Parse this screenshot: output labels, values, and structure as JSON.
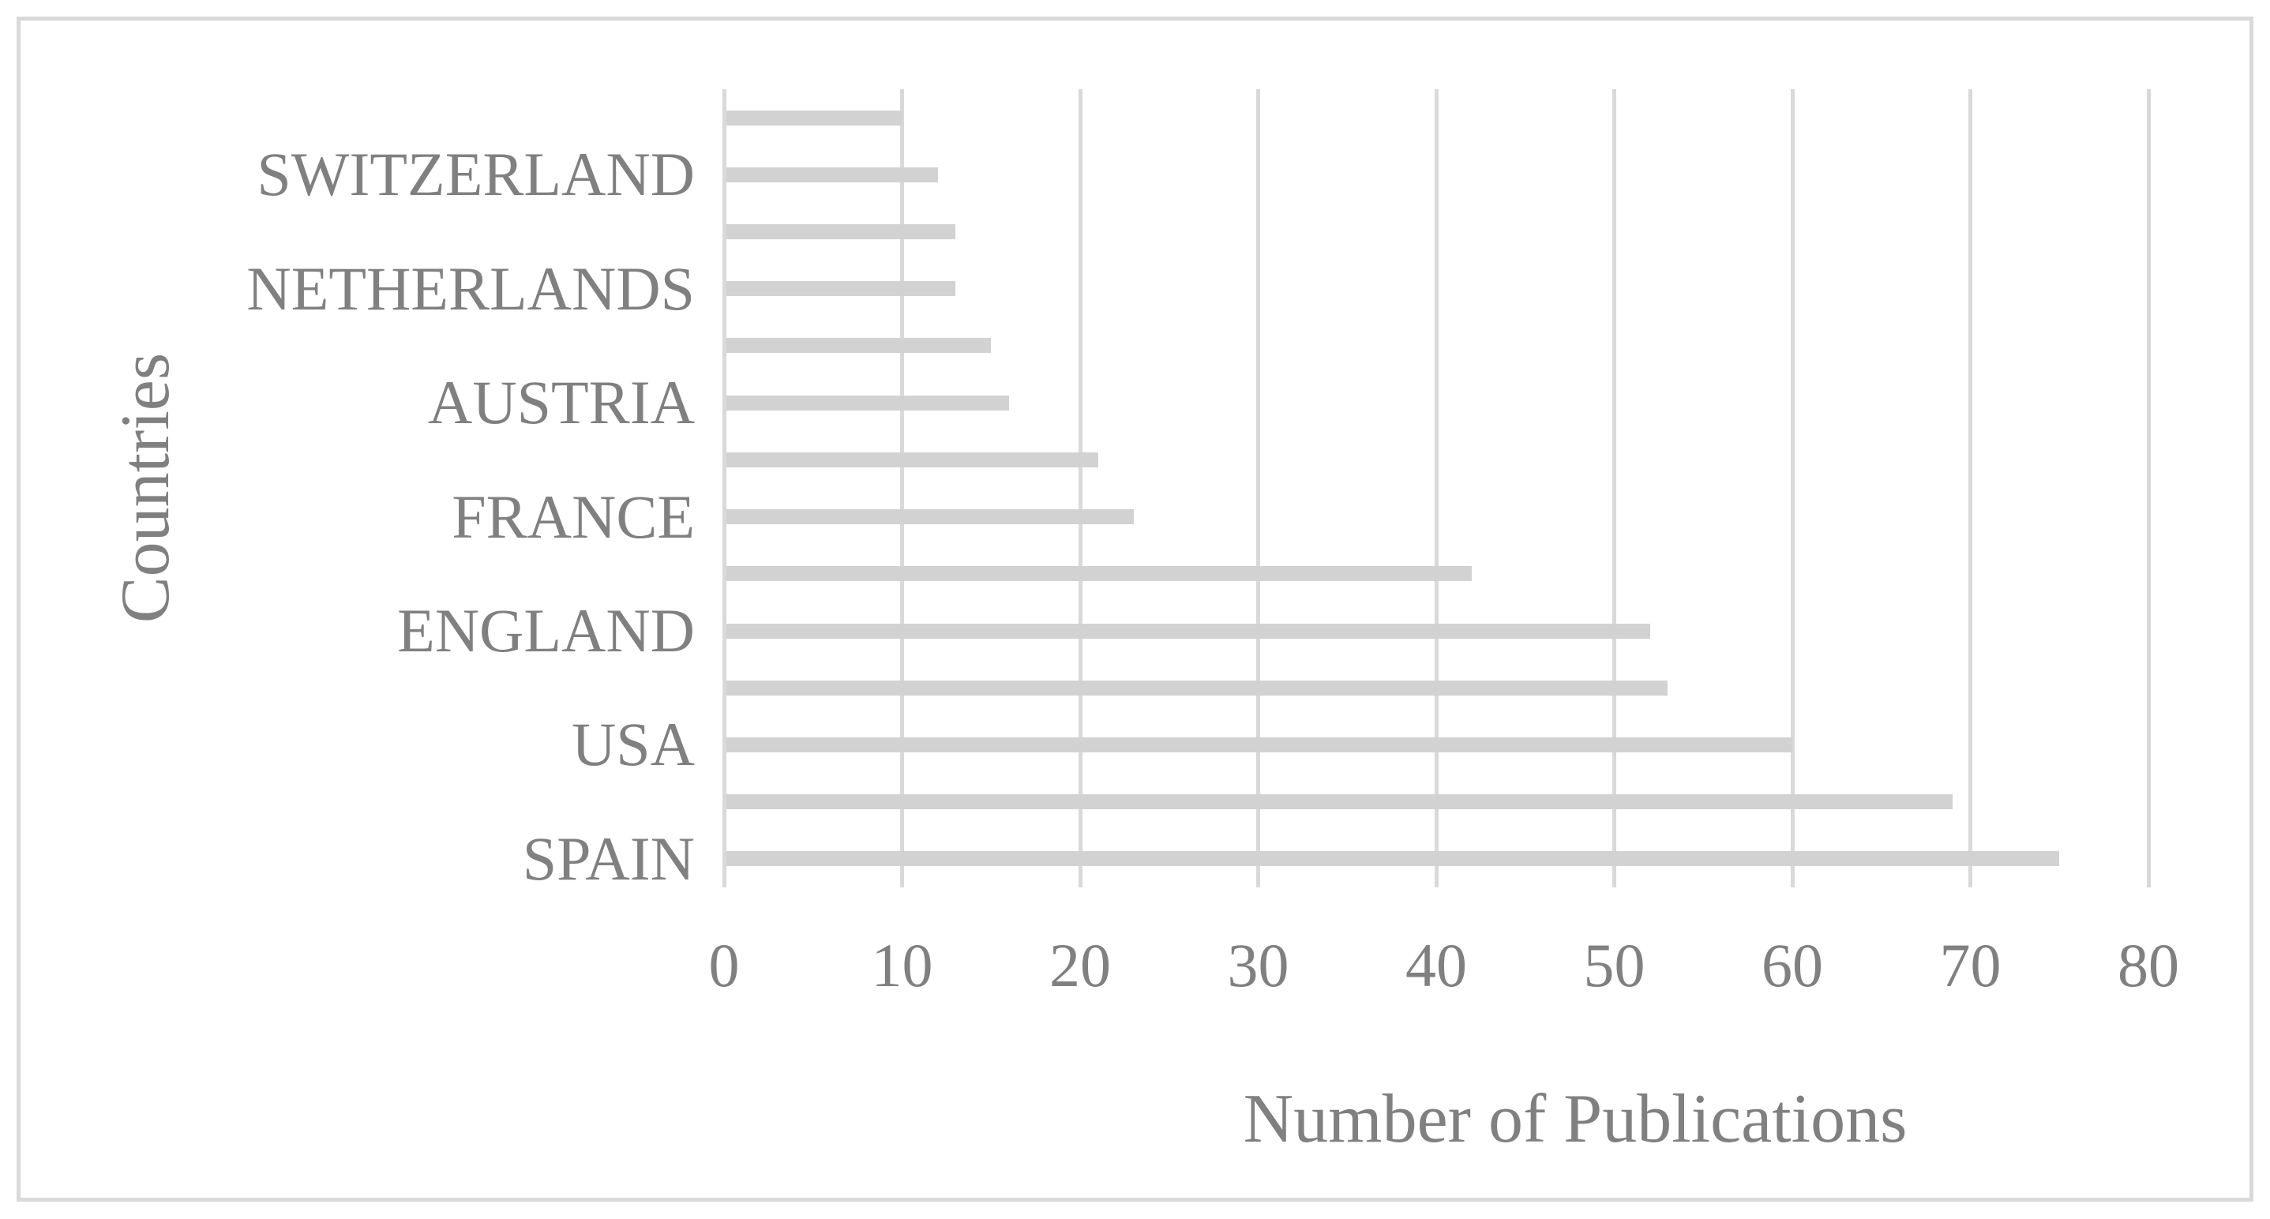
{
  "figure": {
    "background_color": "#ffffff",
    "border_color": "#d9d9d9",
    "text_color": "#808080",
    "bar_color": "#d2d2d2",
    "gridline_color": "#d9d9d9"
  },
  "chart_data": {
    "type": "bar",
    "orientation": "horizontal",
    "title": "",
    "xlabel": "Number of Publications",
    "ylabel": "Countries",
    "xlim": [
      0,
      80
    ],
    "xticks": [
      "0",
      "10",
      "20",
      "30",
      "40",
      "50",
      "60",
      "70",
      "80"
    ],
    "grid": true,
    "legend": false,
    "note": "14 bars top-to-bottom; only alternate category labels are shown on the axis",
    "categories": [
      "",
      "SWITZERLAND",
      "",
      "NETHERLANDS",
      "",
      "AUSTRIA",
      "",
      "FRANCE",
      "",
      "ENGLAND",
      "",
      "USA",
      "",
      "SPAIN"
    ],
    "values": [
      10,
      12,
      13,
      13,
      15,
      16,
      21,
      23,
      42,
      52,
      53,
      60,
      69,
      75
    ]
  }
}
